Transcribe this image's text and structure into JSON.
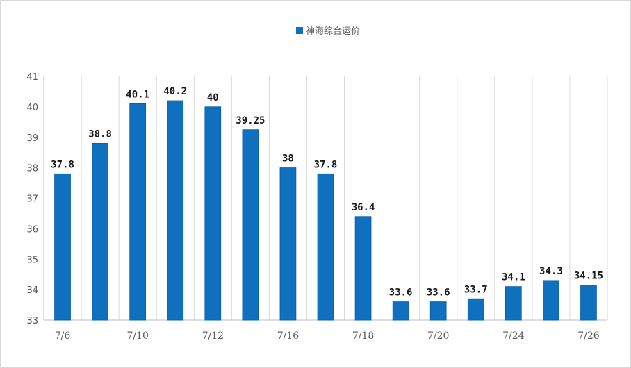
{
  "colors": {
    "bar": "#1070c0",
    "bar_edge": "#0b5fa8",
    "grid": "#d9d9d9",
    "axis": "#bfbfbf"
  },
  "chart_data": {
    "type": "bar",
    "title": "",
    "xlabel": "",
    "ylabel": "",
    "legend": "top-center",
    "grid": true,
    "ylim": [
      33,
      41
    ],
    "yticks": [
      33,
      34,
      35,
      36,
      37,
      38,
      39,
      40,
      41
    ],
    "categories": [
      "7/6",
      "",
      "7/10",
      "",
      "7/12",
      "",
      "7/16",
      "",
      "7/18",
      "",
      "7/20",
      "",
      "7/24",
      "",
      "7/26"
    ],
    "series": [
      {
        "name": "神海综合运价",
        "values": [
          37.8,
          38.8,
          40.1,
          40.2,
          40,
          39.25,
          38,
          37.8,
          36.4,
          33.6,
          33.6,
          33.7,
          34.1,
          34.3,
          34.15
        ],
        "labels": [
          "37.8",
          "38.8",
          "40.1",
          "40.2",
          "40",
          "39.25",
          "38",
          "37.8",
          "36.4",
          "33.6",
          "33.6",
          "33.7",
          "34.1",
          "34.3",
          "34.15"
        ]
      }
    ]
  }
}
